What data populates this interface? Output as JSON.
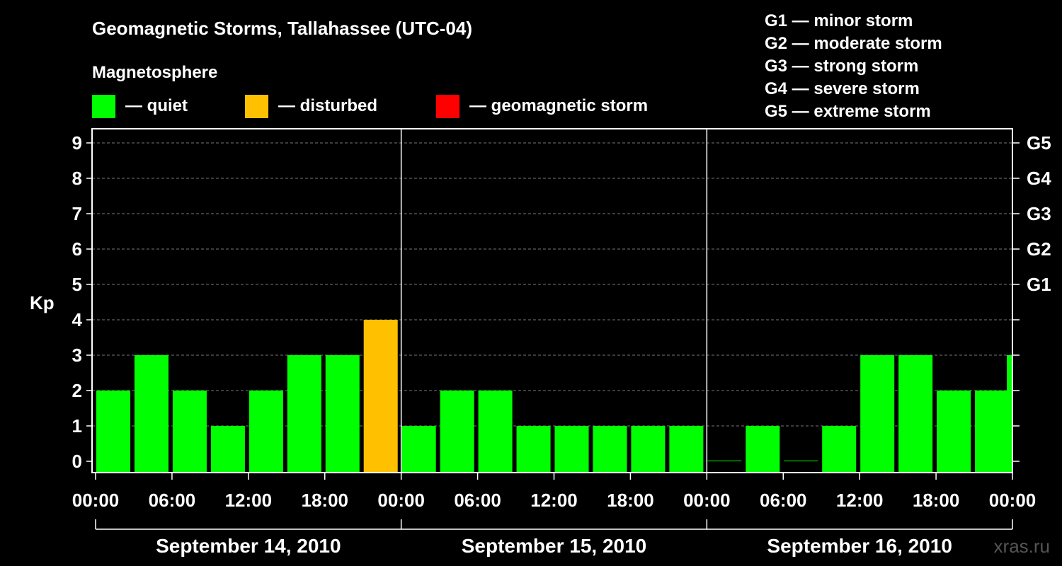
{
  "chart_data": {
    "type": "bar",
    "title": "Geomagnetic Storms, Tallahassee (UTC-04)",
    "legend_title": "Magnetosphere",
    "legend": [
      {
        "label": "— quiet",
        "color": "#00ff00"
      },
      {
        "label": "— disturbed",
        "color": "#ffc000"
      },
      {
        "label": "— geomagnetic storm",
        "color": "#ff0000"
      }
    ],
    "storm_legend": [
      "G1 — minor storm",
      "G2 — moderate storm",
      "G3 — strong storm",
      "G4 — severe storm",
      "G5 — extreme storm"
    ],
    "ylabel": "Kp",
    "ylim": [
      0,
      9
    ],
    "y_ticks": [
      "0",
      "1",
      "2",
      "3",
      "4",
      "5",
      "6",
      "7",
      "8",
      "9"
    ],
    "right_ticks": [
      {
        "kp": 5,
        "label": "G1"
      },
      {
        "kp": 6,
        "label": "G2"
      },
      {
        "kp": 7,
        "label": "G3"
      },
      {
        "kp": 8,
        "label": "G4"
      },
      {
        "kp": 9,
        "label": "G5"
      }
    ],
    "grid": "horizontal dashed at Kp 5–9",
    "x_tick_labels": [
      "00:00",
      "06:00",
      "12:00",
      "18:00",
      "00:00",
      "06:00",
      "12:00",
      "18:00",
      "00:00",
      "06:00",
      "12:00",
      "18:00",
      "00:00"
    ],
    "days": [
      "September 14, 2010",
      "September 15, 2010",
      "September 16, 2010"
    ],
    "interval_start_hours": [
      0,
      3,
      6,
      9,
      12,
      15,
      18,
      21,
      24,
      27,
      30,
      33,
      36,
      39,
      42,
      45,
      48,
      51,
      54,
      57,
      60,
      63,
      66,
      69
    ],
    "values": [
      2,
      3,
      2,
      1,
      2,
      3,
      3,
      4,
      1,
      2,
      2,
      1,
      1,
      1,
      1,
      1,
      0,
      1,
      0,
      1,
      3,
      3,
      2,
      2
    ],
    "bar_colors": [
      "#00ff00",
      "#00ff00",
      "#00ff00",
      "#00ff00",
      "#00ff00",
      "#00ff00",
      "#00ff00",
      "#ffc000",
      "#00ff00",
      "#00ff00",
      "#00ff00",
      "#00ff00",
      "#00ff00",
      "#00ff00",
      "#00ff00",
      "#00ff00",
      "#00ff00",
      "#00ff00",
      "#00ff00",
      "#00ff00",
      "#00ff00",
      "#00ff00",
      "#00ff00",
      "#00ff00"
    ],
    "partial_bar": {
      "start_hour": 71.5,
      "value": 3,
      "color": "#00ff00"
    },
    "watermark": "xras.ru"
  }
}
